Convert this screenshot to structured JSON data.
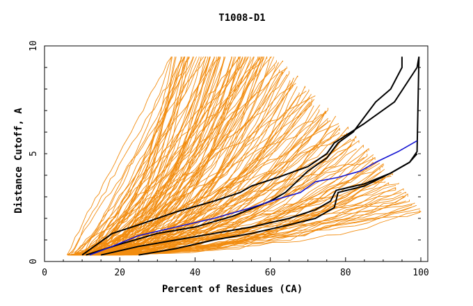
{
  "chart_data": {
    "type": "line",
    "title": "T1008-D1",
    "xlabel": "Percent of Residues (CA)",
    "ylabel": "Distance Cutoff, A",
    "xlim": [
      0,
      100
    ],
    "ylim": [
      0,
      10
    ],
    "x_ticks": [
      0,
      20,
      40,
      60,
      80,
      100
    ],
    "y_ticks": [
      0,
      5,
      10
    ],
    "grid": false,
    "legend": "none",
    "colors": {
      "background_models": "#f28c0f",
      "highlight_models": "#000000",
      "reference_model": "#1414d2"
    },
    "highlight_series": [
      {
        "x": [
          10,
          18,
          25,
          35,
          45,
          52,
          55,
          62,
          70,
          75,
          77,
          85,
          93,
          99,
          99.5
        ],
        "y": [
          0.3,
          1.3,
          1.7,
          2.3,
          2.8,
          3.2,
          3.5,
          3.9,
          4.4,
          5.0,
          5.5,
          6.4,
          7.4,
          9.0,
          9.5
        ]
      },
      {
        "x": [
          11,
          20,
          30,
          40,
          50,
          60,
          64,
          70,
          75,
          78,
          82,
          88,
          92,
          95,
          95
        ],
        "y": [
          0.3,
          0.8,
          1.3,
          1.6,
          2.1,
          2.8,
          3.2,
          4.2,
          4.8,
          5.5,
          6.0,
          7.4,
          8.0,
          9.0,
          9.5
        ]
      },
      {
        "x": [
          15,
          25,
          35,
          45,
          55,
          65,
          72,
          76,
          77.5,
          85,
          92,
          97,
          99,
          99.5
        ],
        "y": [
          0.3,
          0.7,
          1.0,
          1.3,
          1.6,
          2.0,
          2.4,
          2.8,
          3.3,
          3.6,
          4.1,
          4.6,
          5.1,
          9.5
        ]
      },
      {
        "x": [
          25,
          35,
          45,
          55,
          65,
          72,
          77,
          78,
          85,
          92,
          97,
          99
        ],
        "y": [
          0.3,
          0.6,
          1.0,
          1.3,
          1.7,
          2.0,
          2.5,
          3.2,
          3.5,
          4.1,
          4.6,
          5.0
        ]
      }
    ],
    "reference_series": {
      "x": [
        12,
        18,
        25,
        35,
        45,
        55,
        62,
        68,
        72,
        78,
        84,
        88,
        94,
        99
      ],
      "y": [
        0.3,
        0.7,
        1.2,
        1.6,
        2.0,
        2.5,
        2.9,
        3.2,
        3.7,
        3.9,
        4.2,
        4.6,
        5.1,
        5.6
      ]
    }
  }
}
